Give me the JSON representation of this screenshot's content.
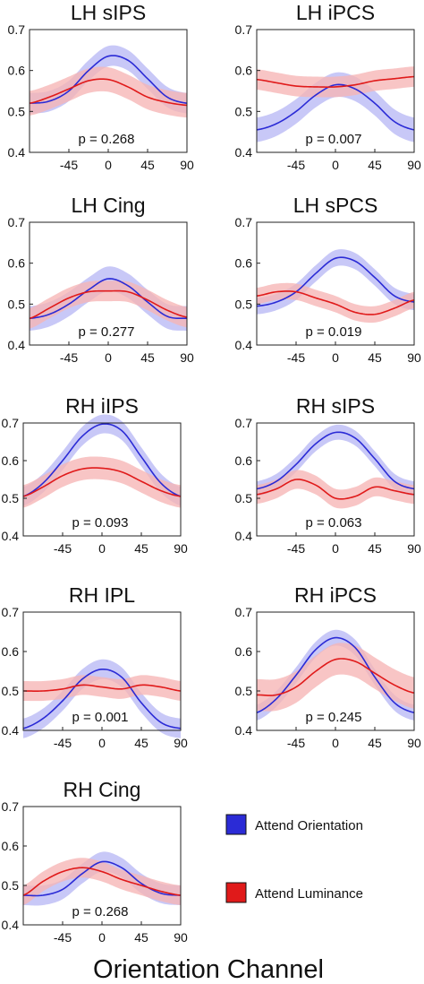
{
  "figure": {
    "xlabel": "Orientation Channel",
    "legend": [
      {
        "label": "Attend Orientation",
        "color": "#2b2bd6",
        "band": "#b9b9f5"
      },
      {
        "label": "Attend Luminance",
        "color": "#e01a1a",
        "band": "#f6b5b5"
      }
    ]
  },
  "chart_data": [
    {
      "type": "line",
      "title": "LH sIPS",
      "p": "p = 0.268",
      "ylim": [
        0.4,
        0.7
      ],
      "yticks": [
        "0.4",
        "0.5",
        "0.6",
        "0.7"
      ],
      "xlim": [
        -90,
        90
      ],
      "xticks": [
        "-45",
        "0",
        "45",
        "90"
      ],
      "x": [
        -90,
        -67.5,
        -45,
        -22.5,
        0,
        22.5,
        45,
        67.5,
        90
      ],
      "series": [
        {
          "name": "Attend Orientation",
          "values": [
            0.52,
            0.525,
            0.55,
            0.6,
            0.635,
            0.625,
            0.58,
            0.535,
            0.52
          ],
          "err": 0.025
        },
        {
          "name": "Attend Luminance",
          "values": [
            0.52,
            0.535,
            0.555,
            0.575,
            0.578,
            0.56,
            0.535,
            0.522,
            0.515
          ],
          "err": 0.03
        }
      ]
    },
    {
      "type": "line",
      "title": "LH iPCS",
      "p": "p = 0.007",
      "ylim": [
        0.4,
        0.7
      ],
      "yticks": [
        "0.4",
        "0.5",
        "0.6",
        "0.7"
      ],
      "xlim": [
        -90,
        90
      ],
      "xticks": [
        "-45",
        "0",
        "45",
        "90"
      ],
      "x": [
        -90,
        -67.5,
        -45,
        -22.5,
        0,
        22.5,
        45,
        67.5,
        90
      ],
      "series": [
        {
          "name": "Attend Orientation",
          "values": [
            0.455,
            0.47,
            0.5,
            0.54,
            0.565,
            0.555,
            0.52,
            0.475,
            0.455
          ],
          "err": 0.03
        },
        {
          "name": "Attend Luminance",
          "values": [
            0.578,
            0.57,
            0.562,
            0.56,
            0.56,
            0.565,
            0.575,
            0.58,
            0.585
          ],
          "err": 0.025
        }
      ]
    },
    {
      "type": "line",
      "title": "LH Cing",
      "p": "p = 0.277",
      "ylim": [
        0.4,
        0.7
      ],
      "yticks": [
        "0.4",
        "0.5",
        "0.6",
        "0.7"
      ],
      "xlim": [
        -90,
        90
      ],
      "xticks": [
        "-45",
        "0",
        "45",
        "90"
      ],
      "x": [
        -90,
        -67.5,
        -45,
        -22.5,
        0,
        22.5,
        45,
        67.5,
        90
      ],
      "series": [
        {
          "name": "Attend Orientation",
          "values": [
            0.465,
            0.475,
            0.5,
            0.535,
            0.562,
            0.545,
            0.505,
            0.47,
            0.465
          ],
          "err": 0.03
        },
        {
          "name": "Attend Luminance",
          "values": [
            0.465,
            0.49,
            0.515,
            0.53,
            0.532,
            0.53,
            0.51,
            0.485,
            0.468
          ],
          "err": 0.025
        }
      ]
    },
    {
      "type": "line",
      "title": "LH sPCS",
      "p": "p = 0.019",
      "ylim": [
        0.4,
        0.7
      ],
      "yticks": [
        "0.4",
        "0.5",
        "0.6",
        "0.7"
      ],
      "xlim": [
        -90,
        90
      ],
      "xticks": [
        "-45",
        "0",
        "45",
        "90"
      ],
      "x": [
        -90,
        -67.5,
        -45,
        -22.5,
        0,
        22.5,
        45,
        67.5,
        90
      ],
      "series": [
        {
          "name": "Attend Orientation",
          "values": [
            0.495,
            0.505,
            0.53,
            0.575,
            0.612,
            0.605,
            0.565,
            0.52,
            0.505
          ],
          "err": 0.02
        },
        {
          "name": "Attend Luminance",
          "values": [
            0.52,
            0.53,
            0.53,
            0.515,
            0.5,
            0.48,
            0.475,
            0.49,
            0.51
          ],
          "err": 0.02
        }
      ]
    },
    {
      "type": "line",
      "title": "RH iIPS",
      "p": "p = 0.093",
      "ylim": [
        0.4,
        0.7
      ],
      "yticks": [
        "0.4",
        "0.5",
        "0.6",
        "0.7"
      ],
      "xlim": [
        -90,
        90
      ],
      "xticks": [
        "-45",
        "0",
        "45",
        "90"
      ],
      "x": [
        -90,
        -67.5,
        -45,
        -22.5,
        0,
        22.5,
        45,
        67.5,
        90
      ],
      "series": [
        {
          "name": "Attend Orientation",
          "values": [
            0.505,
            0.54,
            0.6,
            0.665,
            0.697,
            0.68,
            0.61,
            0.54,
            0.505
          ],
          "err": 0.025
        },
        {
          "name": "Attend Luminance",
          "values": [
            0.505,
            0.53,
            0.56,
            0.578,
            0.58,
            0.57,
            0.545,
            0.52,
            0.505
          ],
          "err": 0.03
        }
      ]
    },
    {
      "type": "line",
      "title": "RH sIPS",
      "p": "p = 0.063",
      "ylim": [
        0.4,
        0.7
      ],
      "yticks": [
        "0.4",
        "0.5",
        "0.6",
        "0.7"
      ],
      "xlim": [
        -90,
        90
      ],
      "xticks": [
        "-45",
        "0",
        "45",
        "90"
      ],
      "x": [
        -90,
        -67.5,
        -45,
        -22.5,
        0,
        22.5,
        45,
        67.5,
        90
      ],
      "series": [
        {
          "name": "Attend Orientation",
          "values": [
            0.525,
            0.545,
            0.59,
            0.645,
            0.675,
            0.66,
            0.605,
            0.545,
            0.525
          ],
          "err": 0.02
        },
        {
          "name": "Attend Luminance",
          "values": [
            0.51,
            0.525,
            0.55,
            0.535,
            0.5,
            0.505,
            0.53,
            0.52,
            0.51
          ],
          "err": 0.025
        }
      ]
    },
    {
      "type": "line",
      "title": "RH IPL",
      "p": "p = 0.001",
      "ylim": [
        0.4,
        0.7
      ],
      "yticks": [
        "0.4",
        "0.5",
        "0.6",
        "0.7"
      ],
      "xlim": [
        -90,
        90
      ],
      "xticks": [
        "-45",
        "0",
        "45",
        "90"
      ],
      "x": [
        -90,
        -67.5,
        -45,
        -22.5,
        0,
        22.5,
        45,
        67.5,
        90
      ],
      "series": [
        {
          "name": "Attend Orientation",
          "values": [
            0.405,
            0.43,
            0.475,
            0.53,
            0.555,
            0.535,
            0.47,
            0.42,
            0.405
          ],
          "err": 0.025
        },
        {
          "name": "Attend Luminance",
          "values": [
            0.5,
            0.5,
            0.505,
            0.515,
            0.51,
            0.505,
            0.515,
            0.51,
            0.5
          ],
          "err": 0.025
        }
      ]
    },
    {
      "type": "line",
      "title": "RH iPCS",
      "p": "p = 0.245",
      "ylim": [
        0.4,
        0.7
      ],
      "yticks": [
        "0.4",
        "0.5",
        "0.6",
        "0.7"
      ],
      "xlim": [
        -90,
        90
      ],
      "xticks": [
        "-45",
        "0",
        "45",
        "90"
      ],
      "x": [
        -90,
        -67.5,
        -45,
        -22.5,
        0,
        22.5,
        45,
        67.5,
        90
      ],
      "series": [
        {
          "name": "Attend Orientation",
          "values": [
            0.445,
            0.48,
            0.54,
            0.605,
            0.635,
            0.61,
            0.535,
            0.47,
            0.445
          ],
          "err": 0.02
        },
        {
          "name": "Attend Luminance",
          "values": [
            0.49,
            0.49,
            0.51,
            0.55,
            0.58,
            0.575,
            0.545,
            0.515,
            0.495
          ],
          "err": 0.04
        }
      ]
    },
    {
      "type": "line",
      "title": "RH Cing",
      "p": "p = 0.268",
      "ylim": [
        0.4,
        0.7
      ],
      "yticks": [
        "0.4",
        "0.5",
        "0.6",
        "0.7"
      ],
      "xlim": [
        -90,
        90
      ],
      "xticks": [
        "-45",
        "0",
        "45",
        "90"
      ],
      "x": [
        -90,
        -67.5,
        -45,
        -22.5,
        0,
        22.5,
        45,
        67.5,
        90
      ],
      "series": [
        {
          "name": "Attend Orientation",
          "values": [
            0.475,
            0.475,
            0.49,
            0.53,
            0.56,
            0.545,
            0.505,
            0.48,
            0.475
          ],
          "err": 0.025
        },
        {
          "name": "Attend Luminance",
          "values": [
            0.475,
            0.51,
            0.535,
            0.545,
            0.535,
            0.515,
            0.5,
            0.485,
            0.475
          ],
          "err": 0.025
        }
      ]
    }
  ]
}
